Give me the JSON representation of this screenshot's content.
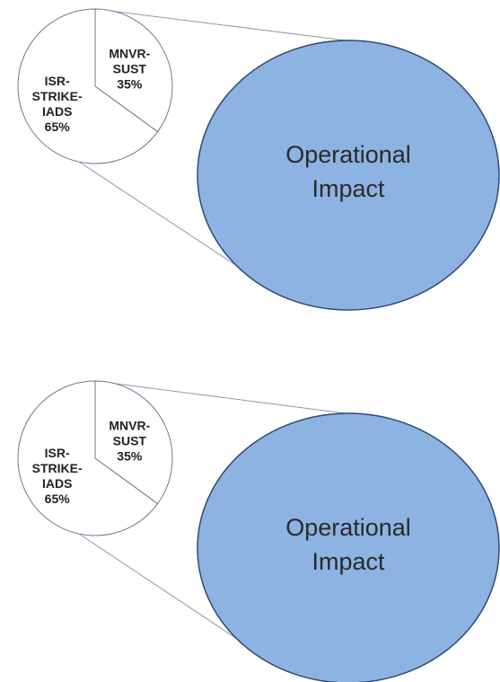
{
  "chart_data": [
    {
      "type": "pie",
      "categories": [
        "MNVR-SUST",
        "ISR-STRIKE-IADS"
      ],
      "values": [
        35,
        65
      ],
      "value_labels": [
        "35%",
        "65%"
      ],
      "colors": [
        "#ffffff",
        "#ffffff"
      ],
      "annotation": "Operational Impact",
      "annotation_color": "#8db3e2"
    },
    {
      "type": "pie",
      "categories": [
        "MNVR-SUST",
        "ISR-STRIKE-IADS"
      ],
      "values": [
        35,
        65
      ],
      "value_labels": [
        "35%",
        "65%"
      ],
      "colors": [
        "#ffffff",
        "#ffffff"
      ],
      "annotation": "Operational Impact",
      "annotation_color": "#8db3e2"
    }
  ]
}
